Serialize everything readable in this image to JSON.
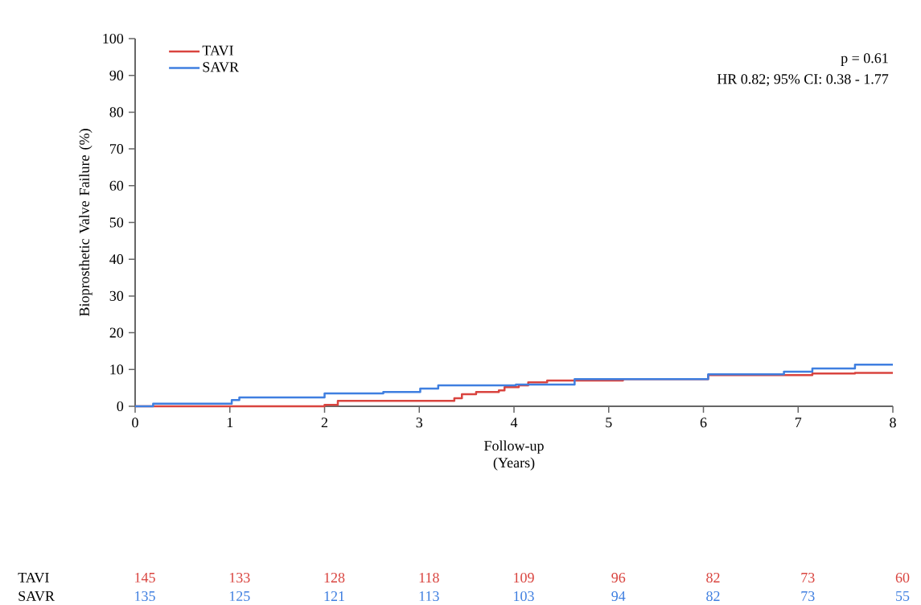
{
  "chart_data": {
    "type": "step",
    "xlabel": "Follow-up (Years)",
    "ylabel": "Bioprosthetic Valve Failure (%)",
    "x": [
      0,
      0.19,
      1.02,
      1.1,
      2.0,
      2.62,
      3.01,
      3.2,
      4.02,
      4.64,
      6.05,
      6.85,
      7.15,
      7.6,
      8
    ],
    "series": [
      {
        "name": "TAVI",
        "color": "#d9443f",
        "x": [
          0,
          2.0,
          2.14,
          3.37,
          3.45,
          3.6,
          3.84,
          3.9,
          4.05,
          4.15,
          4.35,
          5.15,
          6.05,
          7.15,
          7.6,
          8
        ],
        "values": [
          0,
          0.4,
          1.5,
          2.2,
          3.3,
          3.9,
          4.3,
          5.2,
          5.7,
          6.5,
          7.0,
          7.4,
          8.5,
          8.9,
          9.1,
          9.1
        ]
      },
      {
        "name": "SAVR",
        "color": "#3f7fe0",
        "values": [
          0,
          0.7,
          1.7,
          2.4,
          3.5,
          3.9,
          4.8,
          5.7,
          5.9,
          7.4,
          8.7,
          9.4,
          10.3,
          11.3,
          11.3
        ]
      }
    ],
    "xlim": [
      0,
      8
    ],
    "xticks": [
      0,
      1,
      2,
      3,
      4,
      5,
      6,
      7,
      8
    ],
    "ylim": [
      0,
      100
    ],
    "yticks": [
      0,
      10,
      20,
      30,
      40,
      50,
      60,
      70,
      80,
      90,
      100
    ],
    "legend": "top left",
    "grid": false,
    "line_style": "solid",
    "annotations": [
      "p = 0.61",
      "HR 0.82; 95% CI: 0.38 - 1.77",
      "TAVI",
      "145",
      "133",
      "128",
      "118",
      "109",
      "96",
      "82",
      "73",
      "60",
      "SAVR",
      "135",
      "125",
      "121",
      "113",
      "103",
      "94",
      "82",
      "73",
      "55"
    ]
  }
}
